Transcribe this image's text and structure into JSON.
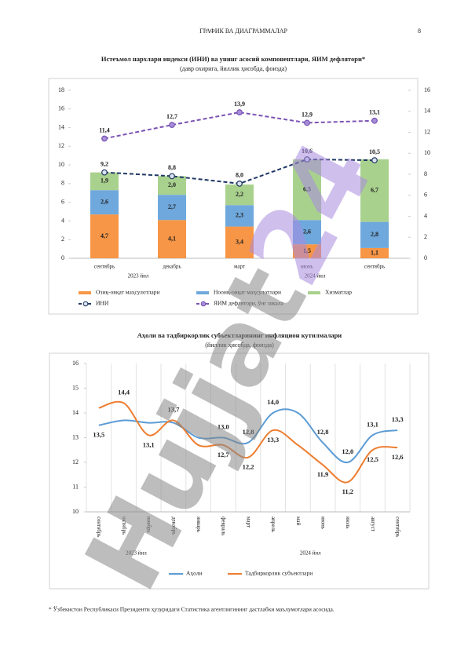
{
  "header": {
    "title": "ГРАФИК ВА ДИАГРАММАЛАР",
    "page": "8"
  },
  "watermark": [
    "Hujjat",
    "24"
  ],
  "chart_data": [
    {
      "type": "bar",
      "title": "Истеъмол нархлари индекси (ИНИ) ва унинг асосий компонентлари, ЯИМ дефлятори*",
      "subtitle": "(давр охирига, йиллик ҳисобда, фоизда)",
      "categories": [
        "сентябрь",
        "декабрь",
        "март",
        "июнь",
        "сентябрь"
      ],
      "group_labels": [
        "2023 йил",
        "2024 йил"
      ],
      "stacked": true,
      "ylim": [
        0,
        18
      ],
      "yticks": [
        0,
        2,
        4,
        6,
        8,
        10,
        12,
        14,
        16,
        18
      ],
      "y2lim": [
        0,
        16
      ],
      "y2ticks": [
        0,
        2,
        4,
        6,
        8,
        10,
        12,
        14,
        16
      ],
      "series": [
        {
          "name": "Озиқ-овқат маҳсулотлари",
          "type": "bar",
          "color": "#f79646",
          "values": [
            4.7,
            4.1,
            3.4,
            1.5,
            1.1
          ],
          "value_labels": [
            "4,7",
            "4,1",
            "3,4",
            "1,5",
            "1,1"
          ]
        },
        {
          "name": "Нооиқ-овқат маҳсулотлари",
          "type": "bar",
          "color": "#6fa8dc",
          "values": [
            2.6,
            2.7,
            2.3,
            2.6,
            2.8
          ],
          "value_labels": [
            "2,6",
            "2,7",
            "2,3",
            "2,6",
            "2,8"
          ]
        },
        {
          "name": "Хизматлар",
          "type": "bar",
          "color": "#a9d18e",
          "values": [
            1.9,
            2.0,
            2.2,
            6.5,
            6.7
          ],
          "value_labels": [
            "1,9",
            "2,0",
            "2,2",
            "6,5",
            "6,7"
          ]
        },
        {
          "name": "ИНИ",
          "type": "line",
          "style": "dashed",
          "color": "#1f3864",
          "marker_fill": "#dce3f0",
          "values": [
            9.2,
            8.8,
            8.0,
            10.6,
            10.5
          ],
          "value_labels": [
            "9,2",
            "8,8",
            "8,0",
            "10,6",
            "10,5"
          ]
        },
        {
          "name": "ЯИМ дефлятори, ўнг шкала",
          "type": "line",
          "style": "dashed",
          "axis": "y2",
          "color": "#7b52b5",
          "marker_fill": "#a58fd8",
          "values": [
            11.4,
            12.7,
            13.9,
            12.9,
            13.1
          ],
          "value_labels": [
            "11,4",
            "12,7",
            "13,9",
            "12,9",
            "13,1"
          ]
        }
      ]
    },
    {
      "type": "line",
      "title": "Аҳоли ва тадбиркорлик субъектларининг инфляцион кутилмалари",
      "subtitle": "(йиллик ҳисобда, фоизда)",
      "categories": [
        "сентябрь",
        "октябрь",
        "ноябрь",
        "декабрь",
        "январь",
        "февраль",
        "март",
        "апрель",
        "май",
        "июнь",
        "июль",
        "август",
        "сентябрь"
      ],
      "group_labels": [
        "2023 йил",
        "2024 йил"
      ],
      "ylim": [
        10,
        16
      ],
      "yticks": [
        10,
        11,
        12,
        13,
        14,
        15,
        16
      ],
      "smooth": true,
      "series": [
        {
          "name": "Аҳоли",
          "color": "#5b9bd5",
          "values": [
            13.5,
            13.7,
            13.6,
            13.6,
            13.0,
            13.0,
            12.8,
            14.0,
            14.0,
            12.8,
            12.0,
            13.1,
            13.3
          ],
          "value_labels": [
            "13,5",
            null,
            null,
            null,
            null,
            "13,0",
            "12,8",
            "14,0",
            null,
            "12,8",
            "12,0",
            "13,1",
            "13,3"
          ]
        },
        {
          "name": "Тадбиркорлик субъектлари",
          "color": "#ed7d31",
          "values": [
            14.2,
            14.4,
            13.1,
            13.7,
            12.7,
            12.7,
            12.2,
            13.3,
            12.7,
            11.9,
            11.2,
            12.5,
            12.6
          ],
          "value_labels": [
            null,
            "14,4",
            "13,1",
            "13,7",
            null,
            "12,7",
            "12,2",
            "13,3",
            null,
            "11,9",
            "11,2",
            "12,5",
            "12,6"
          ]
        }
      ]
    }
  ],
  "footnote": "* Ўзбекистон Республикаси Президенти ҳузуридаги Статистика агентлигининг дастлабки маълумотлари асосида."
}
